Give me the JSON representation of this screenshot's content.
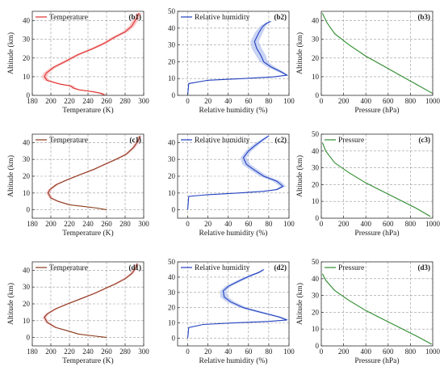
{
  "chart_data": [
    {
      "id": "b1",
      "type": "line",
      "xlabel": "Temperature (K)",
      "ylabel": "Altitude (km)",
      "xlim": [
        180,
        300
      ],
      "xticks": [
        180,
        200,
        220,
        240,
        260,
        280,
        300
      ],
      "ylim": [
        0,
        45
      ],
      "yticks": [
        0,
        10,
        20,
        30,
        40
      ],
      "grid": true,
      "legend": "top-left",
      "series": [
        {
          "name": "Temperature",
          "color": "#e03030",
          "band_color": "#f5b5b5",
          "x": [
            258,
            255,
            245,
            230,
            224,
            222,
            210,
            196,
            193,
            195,
            203,
            215,
            230,
            245,
            258,
            268,
            280,
            287,
            292,
            295
          ],
          "y": [
            0,
            1,
            2,
            3,
            4,
            5,
            6,
            8,
            10,
            12,
            15,
            18,
            22,
            25,
            28,
            31,
            34,
            37,
            41,
            44
          ],
          "spread": [
            3,
            3,
            3,
            3,
            3,
            3,
            3,
            3,
            3,
            3,
            3,
            3,
            3,
            3,
            3,
            3,
            3,
            3,
            3,
            3
          ]
        }
      ]
    },
    {
      "id": "b2",
      "type": "line",
      "xlabel": "Relative humidity (%)",
      "ylabel": "",
      "xlim": [
        -10,
        100
      ],
      "xticks": [
        0,
        20,
        40,
        60,
        80,
        100
      ],
      "ylim": [
        0,
        50
      ],
      "yticks": [
        0,
        10,
        20,
        30,
        40,
        50
      ],
      "grid": true,
      "legend": "top-left",
      "series": [
        {
          "name": "Relative humidity",
          "color": "#2040c0",
          "band_color": "#b7c4ef",
          "x": [
            0,
            1,
            20,
            55,
            85,
            98,
            92,
            82,
            75,
            72,
            68,
            66,
            70,
            74,
            78,
            82
          ],
          "y": [
            0,
            7,
            9,
            10,
            11,
            12,
            14,
            17,
            20,
            24,
            28,
            32,
            37,
            41,
            43,
            44
          ],
          "spread": [
            0,
            0,
            1,
            1,
            1,
            1,
            3,
            4,
            4,
            5,
            5,
            4,
            4,
            3,
            2,
            1
          ]
        }
      ]
    },
    {
      "id": "b3",
      "type": "line",
      "xlabel": "Pressure (hPa)",
      "ylabel": "Altitude (km)",
      "xlim": [
        0,
        1000
      ],
      "xticks": [
        0,
        200,
        400,
        600,
        800,
        1000
      ],
      "ylim": [
        0,
        45
      ],
      "yticks": [
        0,
        10,
        20,
        30,
        40
      ],
      "grid": true,
      "legend": "none",
      "series": [
        {
          "name": "",
          "color": "#2e8b2e",
          "band_color": "#a8d5a8",
          "x": [
            1000,
            850,
            700,
            550,
            400,
            250,
            120,
            50,
            10
          ],
          "y": [
            1,
            6,
            11,
            16,
            21,
            27,
            33,
            39,
            44
          ],
          "spread": [
            0,
            0,
            0,
            0,
            0,
            0,
            0,
            0,
            0
          ]
        }
      ]
    },
    {
      "id": "c1",
      "type": "line",
      "xlabel": "Temperature (K)",
      "ylabel": "Altitude (km)",
      "xlim": [
        180,
        300
      ],
      "xticks": [
        180,
        200,
        220,
        240,
        260,
        280,
        300
      ],
      "ylim": [
        -5,
        45
      ],
      "yticks": [
        0,
        10,
        20,
        30,
        40
      ],
      "grid": true,
      "legend": "top-left",
      "series": [
        {
          "name": "Temperature",
          "color": "#8b3a1a",
          "band_color": "#f5b8c0",
          "x": [
            260,
            250,
            235,
            220,
            208,
            200,
            197,
            199,
            206,
            218,
            232,
            246,
            258,
            270,
            281,
            289,
            294,
            296
          ],
          "y": [
            0,
            1,
            2,
            3,
            5,
            7,
            10,
            12,
            15,
            18,
            21,
            24,
            27,
            30,
            33,
            37,
            41,
            44
          ],
          "spread": [
            2,
            2,
            2,
            2,
            2,
            2,
            2,
            2,
            2,
            2,
            2,
            2,
            2,
            2,
            2,
            2,
            2,
            2
          ]
        }
      ]
    },
    {
      "id": "c2",
      "type": "line",
      "xlabel": "Relative humidity (%)",
      "ylabel": "",
      "xlim": [
        -10,
        100
      ],
      "xticks": [
        0,
        20,
        40,
        60,
        80,
        100
      ],
      "ylim": [
        -5,
        45
      ],
      "yticks": [
        0,
        10,
        20,
        30,
        40
      ],
      "grid": true,
      "legend": "top-left",
      "series": [
        {
          "name": "Relative humidity",
          "color": "#2040c0",
          "band_color": "#b7c4ef",
          "x": [
            0,
            1,
            20,
            50,
            75,
            88,
            94,
            88,
            75,
            65,
            58,
            55,
            60,
            68,
            75,
            80
          ],
          "y": [
            0,
            8,
            9,
            10,
            11,
            12,
            14,
            17,
            20,
            24,
            27,
            31,
            35,
            39,
            42,
            44
          ],
          "spread": [
            0,
            0,
            1,
            1,
            1,
            2,
            3,
            4,
            4,
            4,
            4,
            3,
            3,
            3,
            2,
            1
          ]
        }
      ]
    },
    {
      "id": "c3",
      "type": "line",
      "xlabel": "Pressure (hPa)",
      "ylabel": "Altitude (km)",
      "xlim": [
        0,
        1000
      ],
      "xticks": [
        0,
        200,
        400,
        600,
        800,
        1000
      ],
      "ylim": [
        0,
        50
      ],
      "yticks": [
        0,
        10,
        20,
        30,
        40,
        50
      ],
      "grid": true,
      "legend": "top-left",
      "series": [
        {
          "name": "Pressure",
          "color": "#2e8b2e",
          "band_color": "#a8d5a8",
          "x": [
            980,
            850,
            700,
            550,
            400,
            250,
            120,
            40,
            10
          ],
          "y": [
            1,
            6,
            11,
            16,
            21,
            27,
            33,
            40,
            45
          ],
          "spread": [
            0,
            0,
            0,
            0,
            0,
            0,
            0,
            0,
            0
          ]
        }
      ]
    },
    {
      "id": "d1",
      "type": "line",
      "xlabel": "Temperature (K)",
      "ylabel": "Altitude (km)",
      "xlim": [
        180,
        300
      ],
      "xticks": [
        180,
        200,
        220,
        240,
        260,
        280,
        300
      ],
      "ylim": [
        -5,
        45
      ],
      "yticks": [
        0,
        10,
        20,
        30,
        40
      ],
      "grid": true,
      "legend": "top-left",
      "series": [
        {
          "name": "Temperature",
          "color": "#8b3a1a",
          "band_color": "#f5b8c0",
          "x": [
            260,
            245,
            230,
            218,
            205,
            196,
            193,
            196,
            205,
            218,
            232,
            246,
            258,
            270,
            280,
            287,
            291,
            293
          ],
          "y": [
            0,
            1,
            2,
            4,
            6,
            9,
            12,
            14,
            17,
            20,
            23,
            26,
            29,
            32,
            35,
            38,
            41,
            44
          ],
          "spread": [
            2,
            2,
            2,
            2,
            2,
            2,
            2,
            2,
            2,
            2,
            2,
            2,
            2,
            2,
            2,
            2,
            2,
            2
          ]
        }
      ]
    },
    {
      "id": "d2",
      "type": "line",
      "xlabel": "Relative humidity (%)",
      "ylabel": "",
      "xlim": [
        -10,
        100
      ],
      "xticks": [
        0,
        20,
        40,
        60,
        80,
        100
      ],
      "ylim": [
        -5,
        50
      ],
      "yticks": [
        0,
        10,
        20,
        30,
        40,
        50
      ],
      "grid": true,
      "legend": "top-left",
      "series": [
        {
          "name": "Relative humidity",
          "color": "#2040c0",
          "band_color": "#b7c4ef",
          "x": [
            0,
            1,
            15,
            45,
            80,
            98,
            90,
            72,
            55,
            42,
            36,
            35,
            40,
            52,
            62,
            70,
            75
          ],
          "y": [
            0,
            7,
            9,
            10,
            11,
            12,
            14,
            17,
            20,
            24,
            27,
            31,
            34,
            38,
            41,
            43,
            45
          ],
          "spread": [
            0,
            0,
            1,
            1,
            1,
            2,
            3,
            4,
            4,
            4,
            4,
            3,
            3,
            3,
            3,
            2,
            1
          ]
        }
      ]
    },
    {
      "id": "d3",
      "type": "line",
      "xlabel": "Pressure (hPa)",
      "ylabel": "Altitude (km)",
      "xlim": [
        0,
        1000
      ],
      "xticks": [
        0,
        200,
        400,
        600,
        800,
        1000
      ],
      "ylim": [
        0,
        50
      ],
      "yticks": [
        0,
        10,
        20,
        30,
        40,
        50
      ],
      "grid": true,
      "legend": "top-left",
      "series": [
        {
          "name": "Pressure",
          "color": "#2e8b2e",
          "band_color": "#a8d5a8",
          "x": [
            990,
            850,
            700,
            550,
            400,
            250,
            120,
            40,
            10
          ],
          "y": [
            1,
            6,
            11,
            16,
            21,
            27,
            33,
            39,
            43
          ],
          "spread": [
            0,
            0,
            0,
            0,
            0,
            0,
            0,
            0,
            0
          ]
        }
      ]
    }
  ]
}
